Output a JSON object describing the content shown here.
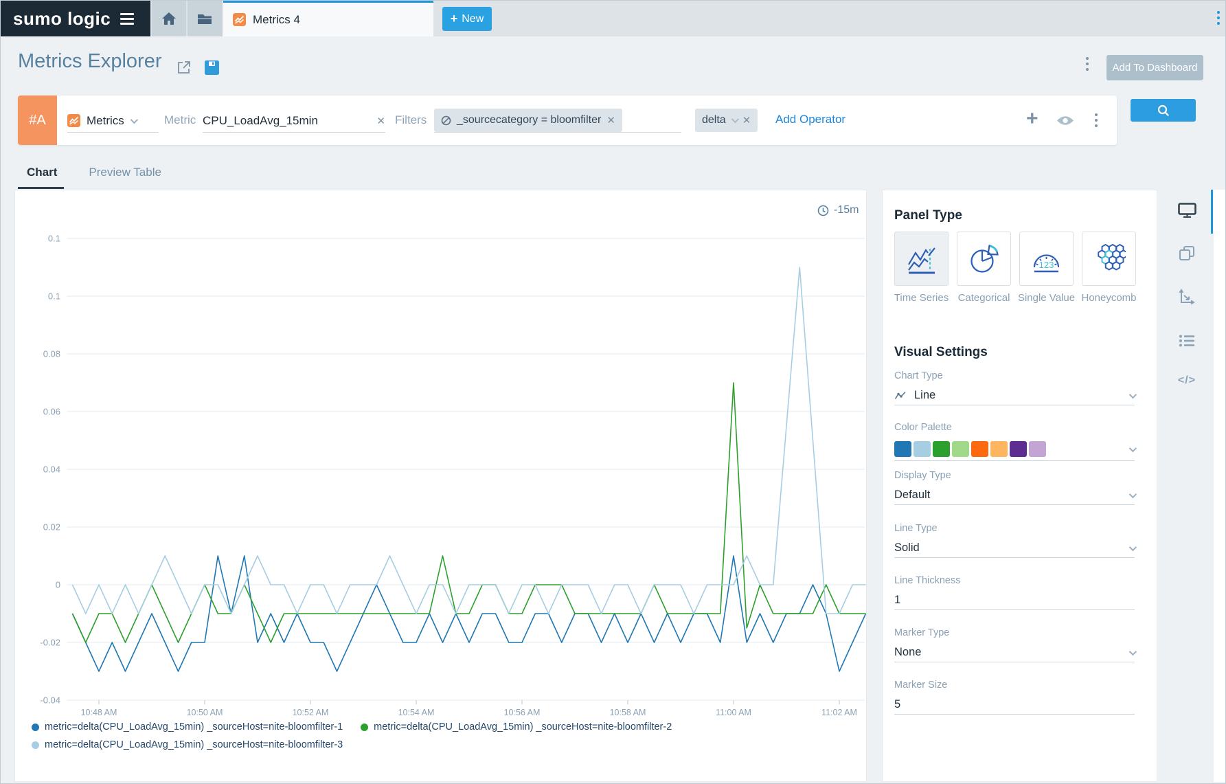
{
  "topbar": {
    "logo": "sumo logic",
    "tab_label": "Metrics 4",
    "new_button_label": "New"
  },
  "header": {
    "title": "Metrics Explorer",
    "add_to_dashboard_label": "Add To Dashboard"
  },
  "query": {
    "row_badge": "#A",
    "source_type": "Metrics",
    "metric_label": "Metric",
    "metric_value": "CPU_LoadAvg_15min",
    "filters_label": "Filters",
    "filter_chip": "_sourcecategory = bloomfilter",
    "operator_chip": "delta",
    "add_operator_label": "Add Operator"
  },
  "tabs": {
    "chart": "Chart",
    "preview_table": "Preview Table"
  },
  "chart": {
    "time_range_label": "-15m"
  },
  "chart_data": {
    "type": "line",
    "title": "",
    "xlabel": "",
    "ylabel": "",
    "grid": true,
    "legend_position": "bottom",
    "x_start": "10:47:30 AM",
    "x_interval_seconds": 15,
    "x_tick_labels": [
      "10:48 AM",
      "10:50 AM",
      "10:52 AM",
      "10:54 AM",
      "10:56 AM",
      "10:58 AM",
      "11:00 AM",
      "11:02 AM"
    ],
    "y_ticks": [
      {
        "value": 0.12,
        "label": "0.1"
      },
      {
        "value": 0.1,
        "label": "0.1"
      },
      {
        "value": 0.08,
        "label": "0.08"
      },
      {
        "value": 0.06,
        "label": "0.06"
      },
      {
        "value": 0.04,
        "label": "0.04"
      },
      {
        "value": 0.02,
        "label": "0.02"
      },
      {
        "value": 0,
        "label": "0"
      },
      {
        "value": -0.02,
        "label": "-0.02"
      },
      {
        "value": -0.04,
        "label": "-0.04"
      }
    ],
    "ylim": [
      -0.05,
      0.125
    ],
    "series": [
      {
        "name": "metric=delta(CPU_LoadAvg_15min) _sourceHost=nite-bloomfilter-1",
        "color": "#1f77b4",
        "values": [
          -0.01,
          -0.02,
          -0.03,
          -0.02,
          -0.03,
          -0.02,
          -0.01,
          -0.02,
          -0.03,
          -0.02,
          -0.02,
          0.01,
          -0.01,
          0.01,
          -0.02,
          -0.01,
          -0.02,
          -0.01,
          -0.02,
          -0.02,
          -0.03,
          -0.02,
          -0.01,
          0,
          -0.01,
          -0.02,
          -0.02,
          -0.01,
          -0.02,
          -0.01,
          -0.02,
          -0.01,
          -0.01,
          -0.02,
          -0.02,
          -0.01,
          -0.01,
          -0.02,
          -0.01,
          -0.01,
          -0.02,
          -0.01,
          -0.02,
          -0.01,
          -0.02,
          -0.01,
          -0.02,
          -0.01,
          -0.01,
          -0.02,
          0.01,
          -0.02,
          -0.01,
          -0.02,
          -0.01,
          -0.01,
          0,
          -0.01,
          -0.03,
          -0.02,
          -0.01
        ]
      },
      {
        "name": "metric=delta(CPU_LoadAvg_15min) _sourceHost=nite-bloomfilter-2",
        "color": "#2ca02c",
        "values": [
          -0.01,
          -0.02,
          -0.01,
          -0.01,
          -0.02,
          -0.01,
          0,
          -0.01,
          -0.02,
          -0.01,
          0,
          -0.01,
          -0.01,
          0,
          -0.01,
          -0.02,
          -0.01,
          -0.01,
          -0.01,
          -0.01,
          -0.01,
          -0.01,
          -0.01,
          -0.01,
          -0.01,
          -0.01,
          -0.01,
          -0.01,
          0.01,
          -0.01,
          -0.01,
          0,
          0,
          -0.01,
          -0.01,
          0,
          0,
          0,
          -0.01,
          -0.01,
          -0.01,
          -0.01,
          -0.01,
          -0.01,
          0,
          -0.01,
          -0.01,
          -0.01,
          -0.01,
          -0.01,
          0.07,
          -0.015,
          0,
          -0.01,
          -0.01,
          -0.01,
          -0.01,
          0,
          -0.01,
          -0.01,
          -0.01
        ]
      },
      {
        "name": "metric=delta(CPU_LoadAvg_15min) _sourceHost=nite-bloomfilter-3",
        "color": "#a6cee3",
        "values": [
          0,
          -0.01,
          0,
          -0.01,
          0,
          -0.01,
          0,
          0.01,
          0,
          -0.01,
          0,
          0,
          -0.01,
          0,
          0.01,
          0,
          0,
          -0.01,
          0,
          0,
          -0.01,
          0,
          0,
          0,
          0.01,
          0,
          -0.01,
          0,
          0,
          -0.01,
          0,
          0,
          0,
          -0.01,
          0,
          0,
          -0.01,
          0,
          0,
          0,
          -0.01,
          0,
          0,
          -0.01,
          0,
          0,
          0,
          -0.01,
          0,
          0,
          0,
          0.01,
          0,
          0,
          0.055,
          0.11,
          0.05,
          -0.01,
          -0.01,
          0,
          0
        ]
      }
    ]
  },
  "panel": {
    "panel_type_title": "Panel Type",
    "panel_types": [
      {
        "label": "Time Series",
        "selected": true
      },
      {
        "label": "Categorical",
        "selected": false
      },
      {
        "label": "Single Value",
        "selected": false
      },
      {
        "label": "Honeycomb",
        "selected": false
      }
    ],
    "visual_settings_title": "Visual Settings",
    "chart_type_label": "Chart Type",
    "chart_type_value": "Line",
    "color_palette_label": "Color Palette",
    "color_palette": [
      "#1f77b4",
      "#a6cee3",
      "#2ca02c",
      "#a1d98b",
      "#fd690f",
      "#fdb55f",
      "#5e2d91",
      "#c2a5d3"
    ],
    "display_type_label": "Display Type",
    "display_type_value": "Default",
    "line_type_label": "Line Type",
    "line_type_value": "Solid",
    "line_thickness_label": "Line Thickness",
    "line_thickness_value": "1",
    "marker_type_label": "Marker Type",
    "marker_type_value": "None",
    "marker_size_label": "Marker Size",
    "marker_size_value": "5"
  },
  "icons": {
    "accent_blue": "#2196d6",
    "icon_gray": "#7d93a8",
    "panel_icon_blue": "#2d5fb8",
    "panel_icon_cyan": "#3fc0d8"
  }
}
